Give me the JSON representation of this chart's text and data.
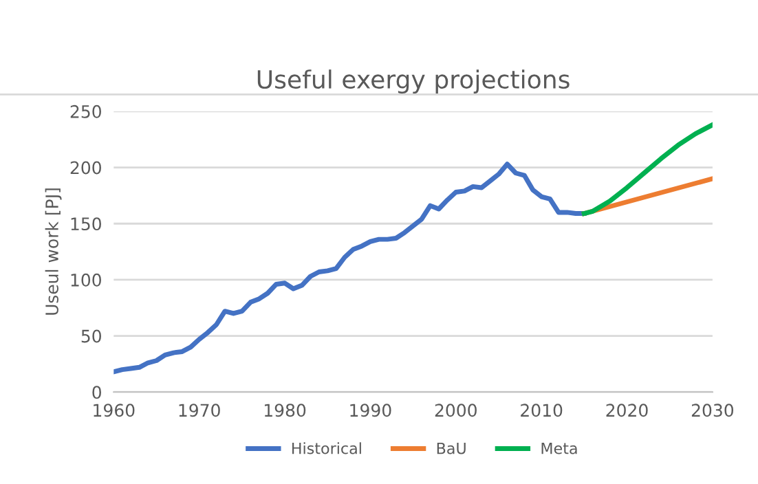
{
  "chart_data": {
    "type": "line",
    "title": "Useful exergy projections",
    "ylabel": "Useul work [PJ]",
    "series": [
      {
        "name": "Historical",
        "color": "#4472c4",
        "x": [
          1960,
          1961,
          1962,
          1963,
          1964,
          1965,
          1966,
          1967,
          1968,
          1969,
          1970,
          1971,
          1972,
          1973,
          1974,
          1975,
          1976,
          1977,
          1978,
          1979,
          1980,
          1981,
          1982,
          1983,
          1984,
          1985,
          1986,
          1987,
          1988,
          1989,
          1990,
          1991,
          1992,
          1993,
          1994,
          1995,
          1996,
          1997,
          1998,
          1999,
          2000,
          2001,
          2002,
          2003,
          2004,
          2005,
          2006,
          2007,
          2008,
          2009,
          2010,
          2011,
          2012,
          2013,
          2014,
          2015
        ],
        "values": [
          18,
          20,
          21,
          22,
          26,
          28,
          33,
          35,
          36,
          40,
          47,
          53,
          60,
          72,
          70,
          72,
          80,
          83,
          88,
          96,
          97,
          92,
          95,
          103,
          107,
          108,
          110,
          120,
          127,
          130,
          134,
          136,
          136,
          137,
          142,
          148,
          154,
          166,
          163,
          171,
          178,
          179,
          183,
          182,
          188,
          194,
          203,
          195,
          193,
          180,
          174,
          172,
          160,
          160,
          159,
          159
        ]
      },
      {
        "name": "BaU",
        "color": "#ed7d31",
        "x": [
          2015,
          2030
        ],
        "values": [
          159,
          190
        ]
      },
      {
        "name": "Meta",
        "color": "#00b050",
        "x": [
          2015,
          2016,
          2018,
          2020,
          2022,
          2024,
          2026,
          2028,
          2030
        ],
        "values": [
          159,
          161,
          170,
          182,
          195,
          208,
          220,
          230,
          238
        ]
      }
    ],
    "xlim": [
      1960,
      2030
    ],
    "xticks": [
      1960,
      1970,
      1980,
      1990,
      2000,
      2010,
      2020,
      2030
    ],
    "ylim": [
      0,
      250
    ],
    "yticks": [
      0,
      50,
      100,
      150,
      200,
      250
    ],
    "grid": "y",
    "legend": "bottom",
    "marker": "none",
    "line_style": "solid"
  }
}
